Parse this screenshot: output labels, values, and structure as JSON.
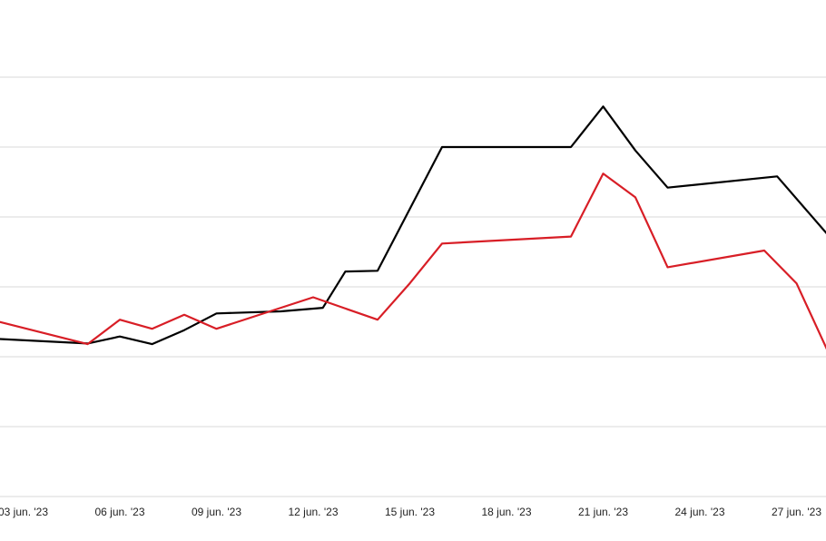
{
  "chart_data": {
    "type": "line",
    "title": "",
    "xlabel": "",
    "ylabel": "",
    "x_ticks": [
      "03 jun. '23",
      "06 jun. '23",
      "09 jun. '23",
      "12 jun. '23",
      "15 jun. '23",
      "18 jun. '23",
      "21 jun. '23",
      "24 jun. '23",
      "27 jun. '23"
    ],
    "y_grid_levels": [
      0,
      1,
      2,
      3,
      4,
      5,
      6
    ],
    "ylim": [
      0,
      6
    ],
    "grid": true,
    "series": [
      {
        "color": "#000000",
        "points": [
          {
            "x": 2.0,
            "y": 2.26
          },
          {
            "x": 5.0,
            "y": 2.19
          },
          {
            "x": 6.0,
            "y": 2.29
          },
          {
            "x": 7.0,
            "y": 2.18
          },
          {
            "x": 8.0,
            "y": 2.38
          },
          {
            "x": 9.0,
            "y": 2.62
          },
          {
            "x": 11.0,
            "y": 2.65
          },
          {
            "x": 12.3,
            "y": 2.7
          },
          {
            "x": 13.0,
            "y": 3.22
          },
          {
            "x": 14.0,
            "y": 3.23
          },
          {
            "x": 16.0,
            "y": 5.0
          },
          {
            "x": 20.0,
            "y": 5.0
          },
          {
            "x": 21.0,
            "y": 5.58
          },
          {
            "x": 22.0,
            "y": 4.95
          },
          {
            "x": 23.0,
            "y": 4.42
          },
          {
            "x": 26.4,
            "y": 4.58
          },
          {
            "x": 28.0,
            "y": 3.73
          }
        ]
      },
      {
        "color": "#d81e26",
        "points": [
          {
            "x": 2.0,
            "y": 2.53
          },
          {
            "x": 5.0,
            "y": 2.18
          },
          {
            "x": 6.0,
            "y": 2.53
          },
          {
            "x": 7.0,
            "y": 2.4
          },
          {
            "x": 8.0,
            "y": 2.6
          },
          {
            "x": 9.0,
            "y": 2.4
          },
          {
            "x": 12.0,
            "y": 2.85
          },
          {
            "x": 14.0,
            "y": 2.53
          },
          {
            "x": 15.0,
            "y": 3.05
          },
          {
            "x": 16.0,
            "y": 3.62
          },
          {
            "x": 20.0,
            "y": 3.72
          },
          {
            "x": 21.0,
            "y": 4.62
          },
          {
            "x": 22.0,
            "y": 4.28
          },
          {
            "x": 23.0,
            "y": 3.28
          },
          {
            "x": 26.0,
            "y": 3.52
          },
          {
            "x": 27.0,
            "y": 3.05
          },
          {
            "x": 28.0,
            "y": 2.05
          }
        ]
      }
    ]
  }
}
